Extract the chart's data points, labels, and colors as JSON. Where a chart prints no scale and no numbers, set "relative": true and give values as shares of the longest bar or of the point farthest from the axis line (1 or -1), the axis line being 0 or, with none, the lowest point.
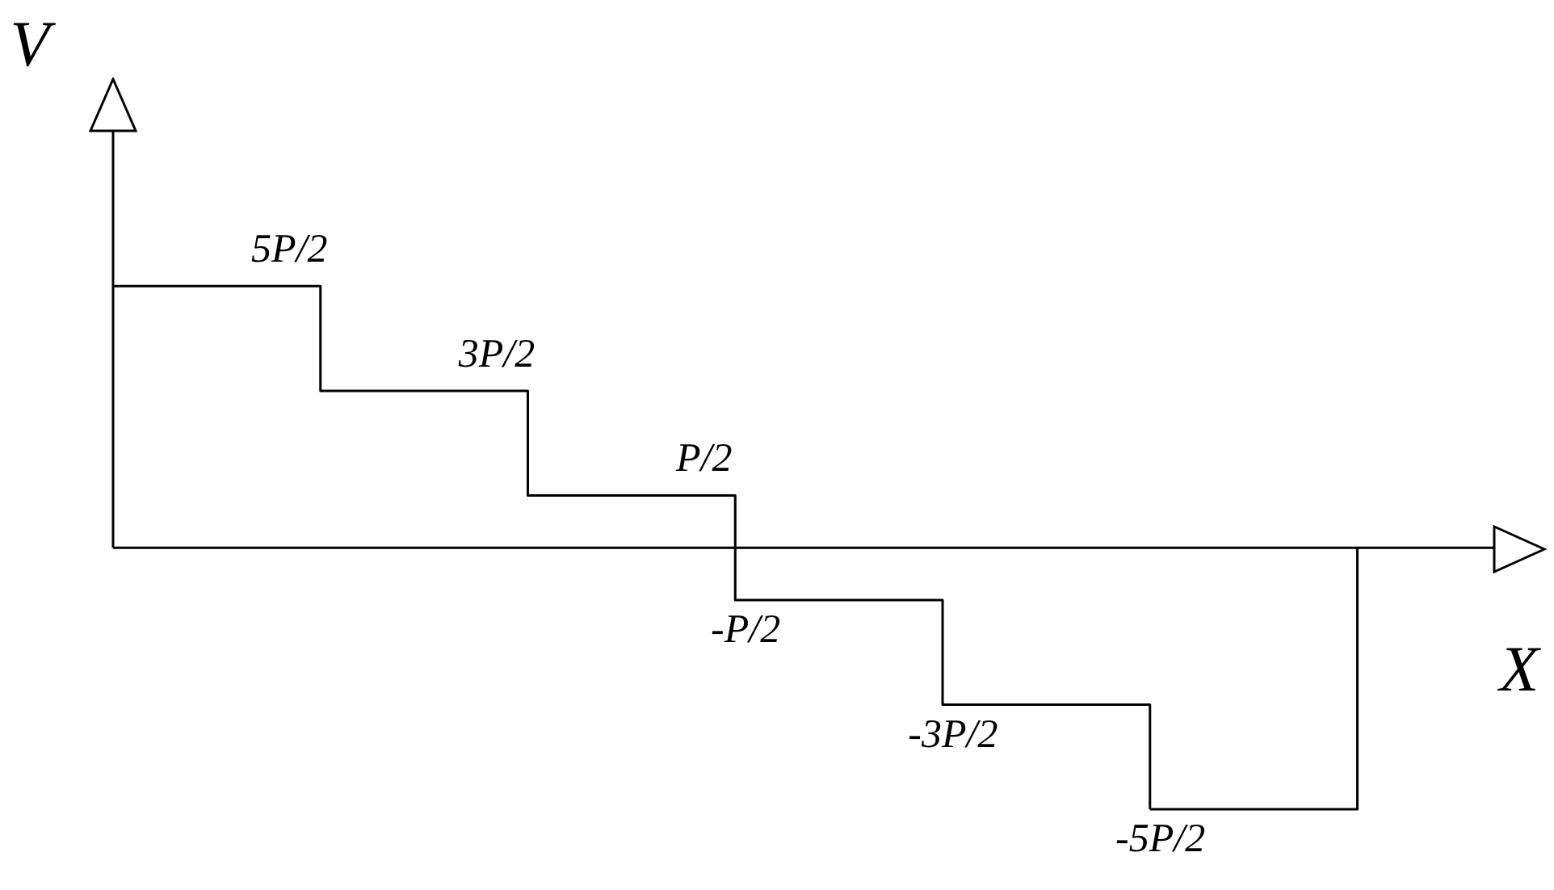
{
  "chart_data": {
    "type": "step",
    "relative": true,
    "xlabel": "X",
    "ylabel": "V",
    "color": "#000000",
    "categories": [
      null,
      null,
      null,
      null,
      null,
      null
    ],
    "values": [
      1,
      0.6,
      0.2,
      -0.2,
      -0.6,
      -1
    ],
    "annotations": [
      {
        "text": "5P/2",
        "y": 1
      },
      {
        "text": "3P/2",
        "y": 0.6
      },
      {
        "text": "P/2",
        "y": 0.2
      },
      {
        "text": "-P/2",
        "y": -0.2
      },
      {
        "text": "-3P/2",
        "y": -0.6
      },
      "-5P/2"
    ]
  }
}
